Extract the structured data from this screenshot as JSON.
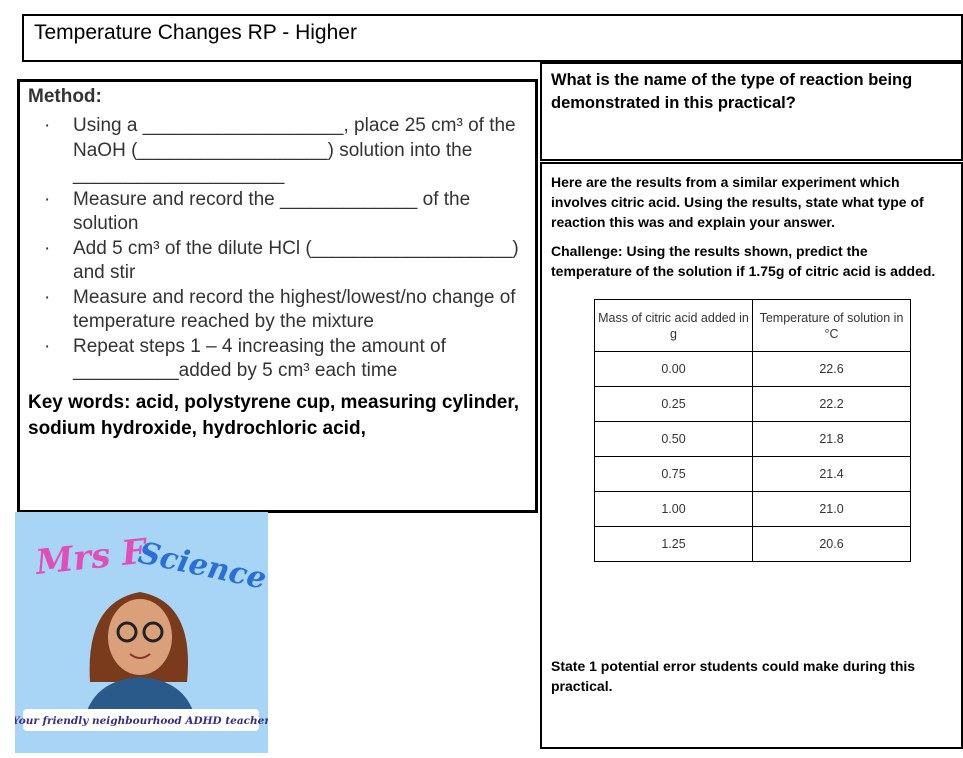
{
  "title": "Temperature Changes RP - Higher",
  "method": {
    "heading": "Method:",
    "steps": [
      "Using a ___________________, place 25 cm³ of the NaOH (__________________) solution into the ____________________",
      "Measure and record the _____________ of the solution",
      "Add 5 cm³ of the dilute HCl (___________________)  and stir",
      "Measure and record the highest/lowest/no change of temperature reached by the mixture",
      "Repeat steps 1 – 4 increasing the amount of __________added by 5 cm³ each time"
    ],
    "keywords": " Key words: acid, polystyrene cup, measuring cylinder, sodium hydroxide, hydrochloric acid,"
  },
  "question1": "What is the name of the type of reaction being demonstrated in this practical?",
  "results": {
    "intro": "Here are the results from a similar experiment which involves citric acid. Using the results, state what type of reaction this was and explain your answer.",
    "challenge": "Challenge: Using the results shown, predict the temperature of the solution if 1.75g of citric acid is added.",
    "headers": [
      "Mass of citric acid added in g",
      "Temperature of solution in °C"
    ],
    "rows": [
      [
        "0.00",
        "22.6"
      ],
      [
        "0.25",
        "22.2"
      ],
      [
        "0.50",
        "21.8"
      ],
      [
        "0.75",
        "21.4"
      ],
      [
        "1.00",
        "21.0"
      ],
      [
        "1.25",
        "20.6"
      ]
    ]
  },
  "error_question": "State 1 potential error students could make during this practical.",
  "logo": {
    "title": "Mrs F Science",
    "tagline": "Your friendly neighbourhood ADHD teacher"
  }
}
